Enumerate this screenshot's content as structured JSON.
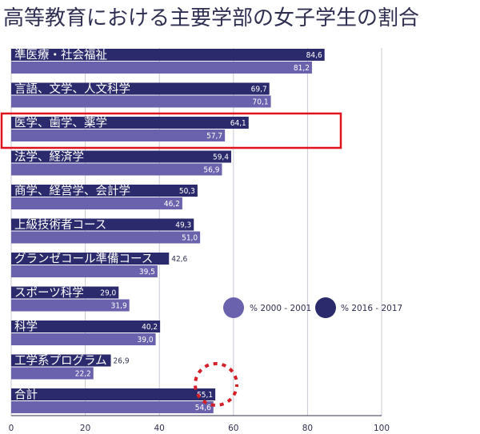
{
  "chart_data": {
    "type": "bar",
    "orientation": "horizontal",
    "title": "高等教育における主要学部の女子学生の割合",
    "categories": [
      "準医療・社会福祉",
      "言語、文学、人文科学",
      "医学、歯学、薬学",
      "法学、経済学",
      "商学、経営学、会計学",
      "上級技術者コース",
      "グランゼコール準備コース",
      "スポーツ科学",
      "科学",
      "工学系プログラム",
      "合計"
    ],
    "series": [
      {
        "name": "% 2016 - 2017",
        "color": "#2b2a6c",
        "values": [
          84.6,
          69.7,
          64.1,
          59.4,
          50.3,
          49.3,
          42.6,
          29.0,
          40.2,
          26.9,
          55.1
        ],
        "labels": [
          "84,6",
          "69,7",
          "64,1",
          "59,4",
          "50,3",
          "49,3",
          "42,6",
          "29,0",
          "40,2",
          "26,9",
          "55,1"
        ]
      },
      {
        "name": "% 2000 - 2001",
        "color": "#6b62ad",
        "values": [
          81.2,
          70.1,
          57.7,
          56.9,
          46.2,
          51.0,
          39.5,
          31.9,
          39.0,
          22.2,
          54.6
        ],
        "labels": [
          "81,2",
          "70,1",
          "57,7",
          "56,9",
          "46,2",
          "51,0",
          "39,5",
          "31,9",
          "39,0",
          "22,2",
          "54,6"
        ]
      }
    ],
    "xlim": [
      0,
      100
    ],
    "xticks": [
      "0",
      "20",
      "40",
      "60",
      "80",
      "100"
    ],
    "grid": true,
    "legend_position": "right-middle",
    "highlighted_category": "医学、歯学、薬学"
  }
}
